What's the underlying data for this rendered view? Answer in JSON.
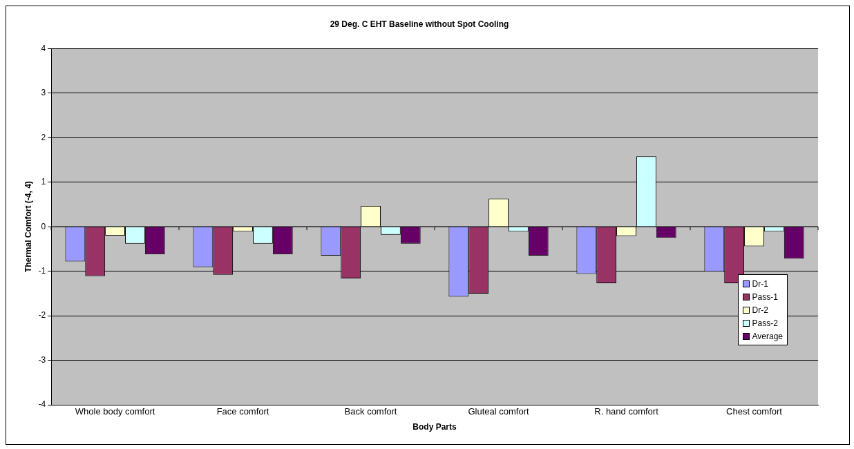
{
  "chart_data": {
    "type": "bar",
    "title": "29 Deg. C EHT Baseline without Spot Cooling",
    "xlabel": "Body Parts",
    "ylabel": "Thermal Comfort (-4, 4)",
    "categories": [
      "Whole body comfort",
      "Face comfort",
      "Back comfort",
      "Gluteal comfort",
      "R. hand comfort",
      "Chest comfort"
    ],
    "series": [
      {
        "name": "Dr-1",
        "color": "#9999ff",
        "values": [
          -0.78,
          -0.91,
          -0.65,
          -1.57,
          -1.06,
          -1.01
        ]
      },
      {
        "name": "Pass-1",
        "color": "#993366",
        "values": [
          -1.11,
          -1.08,
          -1.16,
          -1.5,
          -1.27,
          -1.27
        ]
      },
      {
        "name": "Dr-2",
        "color": "#ffffcc",
        "values": [
          -0.2,
          -0.11,
          0.47,
          0.63,
          -0.21,
          -0.44
        ]
      },
      {
        "name": "Pass-2",
        "color": "#ccffff",
        "values": [
          -0.38,
          -0.38,
          -0.18,
          -0.11,
          1.58,
          -0.11
        ]
      },
      {
        "name": "Average",
        "color": "#660066",
        "values": [
          -0.62,
          -0.62,
          -0.38,
          -0.65,
          -0.25,
          -0.72
        ]
      }
    ],
    "ylim": [
      -4,
      4
    ],
    "yticks": [
      -4,
      -3,
      -2,
      -1,
      0,
      1,
      2,
      3,
      4
    ],
    "grid": "y",
    "legend": "bottom right"
  }
}
